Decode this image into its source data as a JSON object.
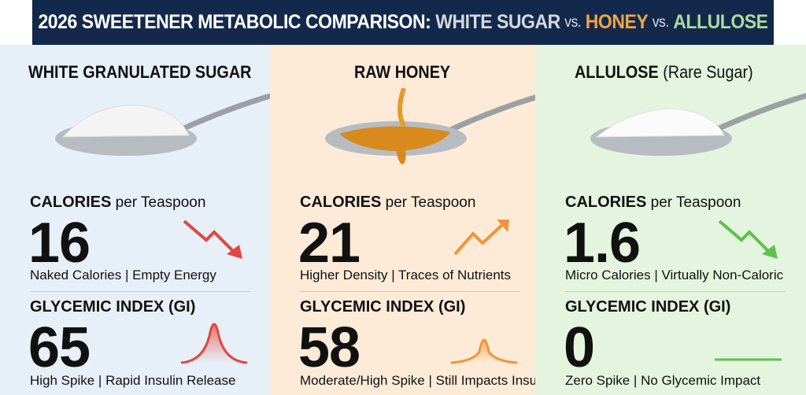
{
  "header": {
    "title_prefix": "2026 SWEETENER METABOLIC COMPARISON:",
    "item1": "WHITE SUGAR",
    "vs1": "vs.",
    "item2": "HONEY",
    "vs2": "vs.",
    "item3": "ALLULOSE",
    "colors": {
      "background": "#13294b",
      "item1": "#d6d9de",
      "item2": "#f0a447",
      "item3": "#a9dba0"
    }
  },
  "columns": [
    {
      "title": "WHITE GRANULATED SUGAR",
      "title_sub": "",
      "background": "#e7eff8",
      "calories_label": "CALORIES",
      "calories_unit": "per Teaspoon",
      "calories": "16",
      "calories_desc": "Naked Calories | Empty Energy",
      "calories_trend": "down-arrow-icon",
      "gi_label": "GLYCEMIC INDEX (GI)",
      "gi": "65",
      "gi_desc": "High Spike | Rapid Insulin Release",
      "gi_curve": "high-spike-icon",
      "accent": "#e2463e"
    },
    {
      "title": "RAW HONEY",
      "title_sub": "",
      "background": "#fdebd8",
      "calories_label": "CALORIES",
      "calories_unit": "per Teaspoon",
      "calories": "21",
      "calories_desc": "Higher Density | Traces of Nutrients",
      "calories_trend": "up-arrow-icon",
      "gi_label": "GLYCEMIC INDEX (GI)",
      "gi": "58",
      "gi_desc": "Moderate/High Spike | Still Impacts Insulin",
      "gi_curve": "moderate-spike-icon",
      "accent": "#f0963a"
    },
    {
      "title": "ALLULOSE",
      "title_sub": "(Rare Sugar)",
      "background": "#e4f4df",
      "calories_label": "CALORIES",
      "calories_unit": "per Teaspoon",
      "calories": "1.6",
      "calories_desc": "Micro Calories | Virtually Non-Caloric",
      "calories_trend": "down-arrow-icon",
      "gi_label": "GLYCEMIC INDEX (GI)",
      "gi": "0",
      "gi_desc": "Zero Spike | No Glycemic Impact",
      "gi_curve": "flat-line-icon",
      "accent": "#5cc24a"
    }
  ]
}
